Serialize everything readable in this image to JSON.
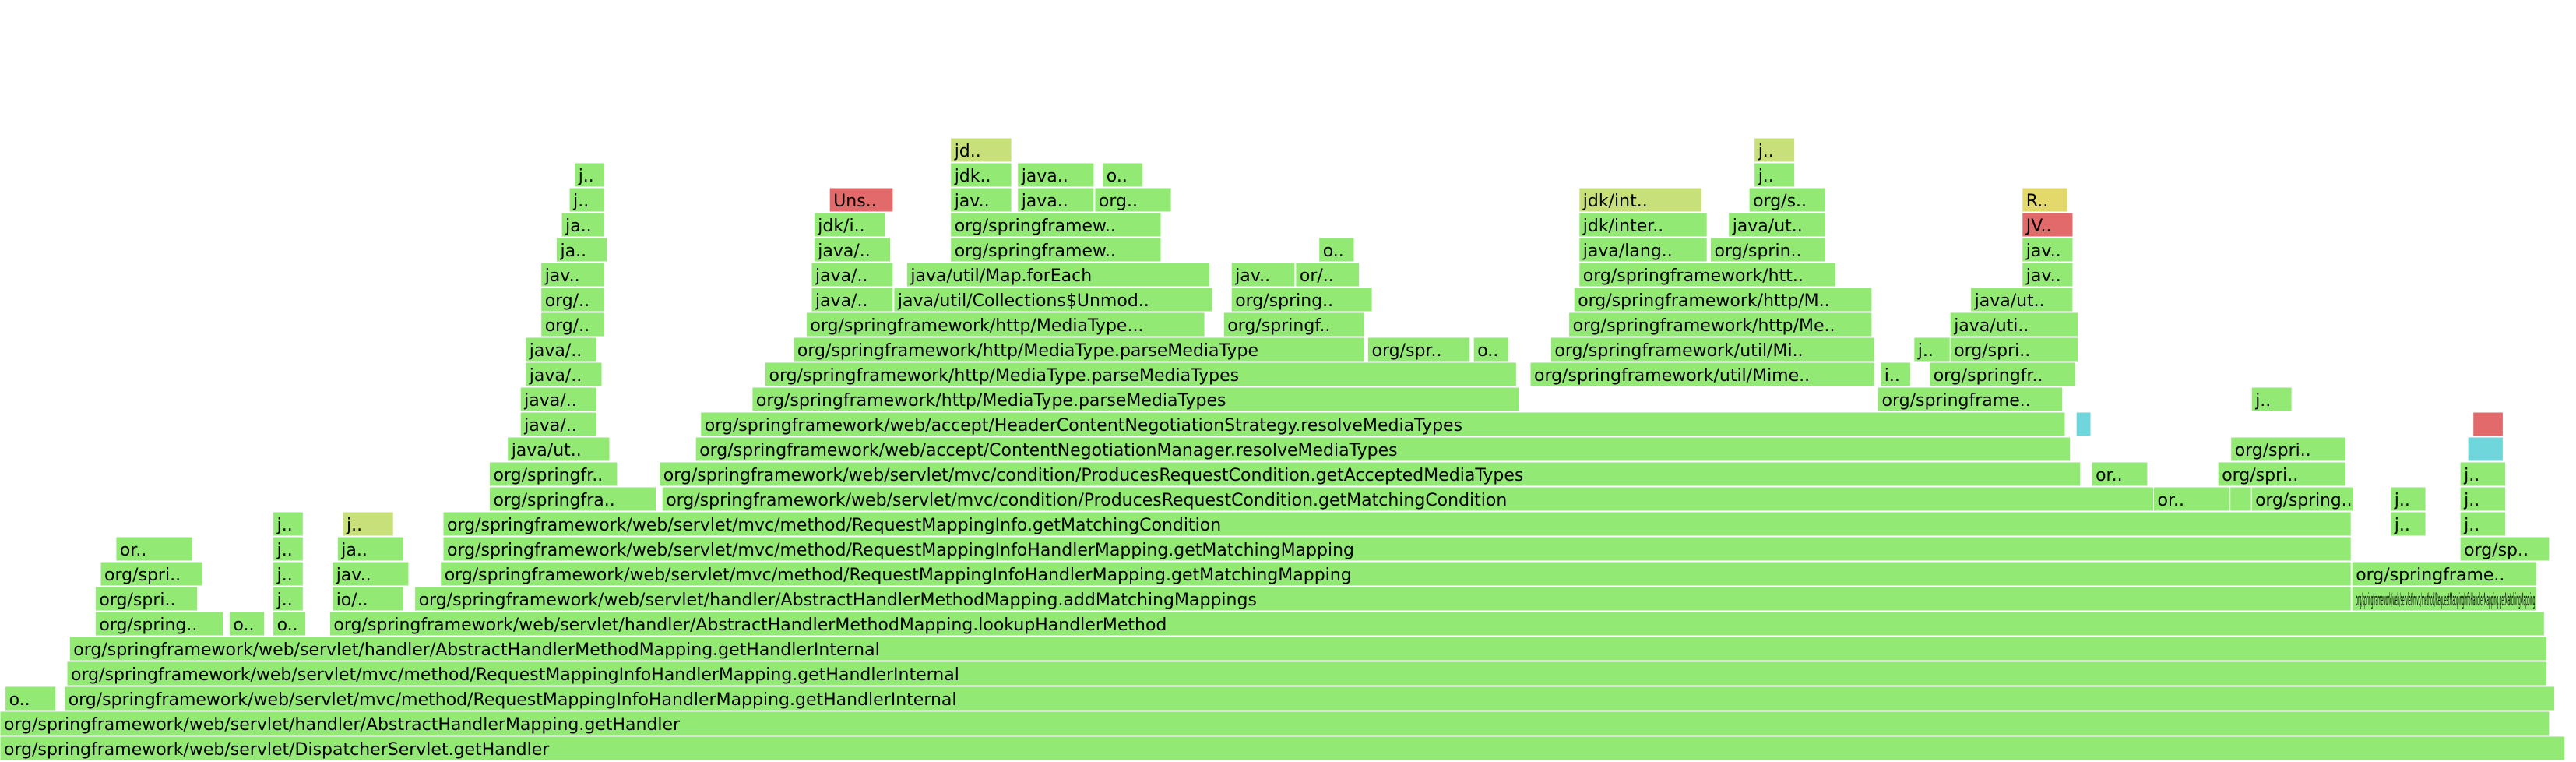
{
  "palette": {
    "green": "#92ea75",
    "green_dark": "#7fdf66",
    "yellow_green": "#c8e07a",
    "yellow": "#e3d96a",
    "cyan": "#6fd6dc",
    "red": "#e36a6a"
  },
  "chart_data": {
    "type": "flamegraph",
    "title": "",
    "xlabel": "",
    "ylabel": "",
    "x_units": "fraction of total samples",
    "frames": [
      {
        "label": "org/springframework/web/servlet/DispatcherServlet.getHandler",
        "level": 0,
        "start": 0.0,
        "width": 0.996,
        "color": "green"
      },
      {
        "label": "org/springframework/web/servlet/handler/AbstractHandlerMapping.getHandler",
        "level": 1,
        "start": 0.0,
        "width": 0.99,
        "color": "green"
      },
      {
        "label": "o..",
        "level": 2,
        "start": 0.002,
        "width": 0.02,
        "color": "green"
      },
      {
        "label": "org/springframework/web/servlet/mvc/method/RequestMappingInfoHandlerMapping.getHandlerInternal",
        "level": 2,
        "start": 0.025,
        "width": 0.967,
        "color": "green"
      },
      {
        "label": "org/springframework/web/servlet/mvc/method/RequestMappingInfoHandlerMapping.getHandlerInternal",
        "level": 3,
        "start": 0.026,
        "width": 0.963,
        "color": "green"
      },
      {
        "label": "org/springframework/web/servlet/handler/AbstractHandlerMethodMapping.getHandlerInternal",
        "level": 4,
        "start": 0.027,
        "width": 0.962,
        "color": "green"
      },
      {
        "label": "org/spring..",
        "level": 5,
        "start": 0.037,
        "width": 0.05,
        "color": "green"
      },
      {
        "label": "o..",
        "level": 5,
        "start": 0.089,
        "width": 0.014,
        "color": "green"
      },
      {
        "label": "o..",
        "level": 5,
        "start": 0.106,
        "width": 0.013,
        "color": "green"
      },
      {
        "label": "org/springframework/web/servlet/handler/AbstractHandlerMethodMapping.lookupHandlerMethod",
        "level": 5,
        "start": 0.128,
        "width": 0.86,
        "color": "green"
      },
      {
        "label": "org/spri..",
        "level": 6,
        "start": 0.037,
        "width": 0.04,
        "color": "green"
      },
      {
        "label": "j..",
        "level": 6,
        "start": 0.106,
        "width": 0.012,
        "color": "green"
      },
      {
        "label": "io/..",
        "level": 6,
        "start": 0.129,
        "width": 0.028,
        "color": "green"
      },
      {
        "label": "org/springframework/web/servlet/handler/AbstractHandlerMethodMapping.addMatchingMappings",
        "level": 6,
        "start": 0.161,
        "width": 0.752,
        "color": "green"
      },
      {
        "label": "org/springframework/web/servlet/mvc/method/RequestMappingInfoHandlerMapping.getMatchingMapping",
        "level": 6,
        "start": 0.913,
        "width": 0.072,
        "color": "green"
      },
      {
        "label": "org/spri..",
        "level": 7,
        "start": 0.039,
        "width": 0.04,
        "color": "green"
      },
      {
        "label": "j..",
        "level": 7,
        "start": 0.106,
        "width": 0.012,
        "color": "green"
      },
      {
        "label": "jav..",
        "level": 7,
        "start": 0.129,
        "width": 0.03,
        "color": "green"
      },
      {
        "label": "org/springframework/web/servlet/mvc/method/RequestMappingInfoHandlerMapping.getMatchingMapping",
        "level": 7,
        "start": 0.171,
        "width": 0.742,
        "color": "green"
      },
      {
        "label": "org/springframe..",
        "level": 7,
        "start": 0.913,
        "width": 0.072,
        "color": "green"
      },
      {
        "label": "or..",
        "level": 8,
        "start": 0.045,
        "width": 0.03,
        "color": "green"
      },
      {
        "label": "j..",
        "level": 8,
        "start": 0.106,
        "width": 0.012,
        "color": "green"
      },
      {
        "label": "ja..",
        "level": 8,
        "start": 0.131,
        "width": 0.026,
        "color": "green"
      },
      {
        "label": "org/springframework/web/servlet/mvc/method/RequestMappingInfoHandlerMapping.getMatchingMapping",
        "level": 8,
        "start": 0.172,
        "width": 0.741,
        "color": "green"
      },
      {
        "label": "org/sp..",
        "level": 8,
        "start": 0.955,
        "width": 0.035,
        "color": "green"
      },
      {
        "label": "j..",
        "level": 9,
        "start": 0.106,
        "width": 0.012,
        "color": "green"
      },
      {
        "label": "j..",
        "level": 9,
        "start": 0.133,
        "width": 0.02,
        "color": "yellow_green"
      },
      {
        "label": "org/springframework/web/servlet/mvc/method/RequestMappingInfo.getMatchingCondition",
        "level": 9,
        "start": 0.172,
        "width": 0.741,
        "color": "green"
      },
      {
        "label": "j..",
        "level": 9,
        "start": 0.928,
        "width": 0.014,
        "color": "green"
      },
      {
        "label": "j..",
        "level": 9,
        "start": 0.955,
        "width": 0.018,
        "color": "green"
      },
      {
        "label": "org/springfra..",
        "level": 10,
        "start": 0.19,
        "width": 0.065,
        "color": "green"
      },
      {
        "label": "org/springframework/web/servlet/mvc/condition/ProducesRequestCondition.getMatchingCondition",
        "level": 10,
        "start": 0.257,
        "width": 0.655,
        "color": "green"
      },
      {
        "label": "or..",
        "level": 10,
        "start": 0.836,
        "width": 0.03,
        "color": "green"
      },
      {
        "label": "org/spring..",
        "level": 10,
        "start": 0.874,
        "width": 0.04,
        "color": "green"
      },
      {
        "label": "j..",
        "level": 10,
        "start": 0.928,
        "width": 0.014,
        "color": "green"
      },
      {
        "label": "j..",
        "level": 10,
        "start": 0.955,
        "width": 0.018,
        "color": "green"
      },
      {
        "label": "org/springfr..",
        "level": 11,
        "start": 0.19,
        "width": 0.05,
        "color": "green"
      },
      {
        "label": "org/springframework/web/servlet/mvc/condition/ProducesRequestCondition.getAcceptedMediaTypes",
        "level": 11,
        "start": 0.256,
        "width": 0.552,
        "color": "green"
      },
      {
        "label": "or..",
        "level": 11,
        "start": 0.812,
        "width": 0.022,
        "color": "green"
      },
      {
        "label": "org/spri..",
        "level": 11,
        "start": 0.861,
        "width": 0.05,
        "color": "green"
      },
      {
        "label": "j..",
        "level": 11,
        "start": 0.955,
        "width": 0.018,
        "color": "green"
      },
      {
        "label": "java/ut..",
        "level": 12,
        "start": 0.197,
        "width": 0.04,
        "color": "green"
      },
      {
        "label": "org/springframework/web/accept/ContentNegotiationManager.resolveMediaTypes",
        "level": 12,
        "start": 0.27,
        "width": 0.534,
        "color": "green"
      },
      {
        "label": "org/spri..",
        "level": 12,
        "start": 0.866,
        "width": 0.045,
        "color": "green"
      },
      {
        "label": "",
        "level": 12,
        "start": 0.958,
        "width": 0.014,
        "color": "cyan"
      },
      {
        "label": "java/..",
        "level": 13,
        "start": 0.202,
        "width": 0.03,
        "color": "green"
      },
      {
        "label": "org/springframework/web/accept/HeaderContentNegotiationStrategy.resolveMediaTypes",
        "level": 13,
        "start": 0.272,
        "width": 0.53,
        "color": "green"
      },
      {
        "label": "",
        "level": 13,
        "start": 0.806,
        "width": 0.006,
        "color": "cyan"
      },
      {
        "label": "",
        "level": 13,
        "start": 0.96,
        "width": 0.012,
        "color": "red"
      },
      {
        "label": "java/..",
        "level": 14,
        "start": 0.202,
        "width": 0.03,
        "color": "green"
      },
      {
        "label": "org/springframework/http/MediaType.parseMediaTypes",
        "level": 14,
        "start": 0.292,
        "width": 0.298,
        "color": "green"
      },
      {
        "label": "org/springframe..",
        "level": 14,
        "start": 0.729,
        "width": 0.072,
        "color": "green"
      },
      {
        "label": "j..",
        "level": 14,
        "start": 0.874,
        "width": 0.016,
        "color": "green"
      },
      {
        "label": "java/..",
        "level": 15,
        "start": 0.204,
        "width": 0.03,
        "color": "green"
      },
      {
        "label": "org/springframework/http/MediaType.parseMediaTypes",
        "level": 15,
        "start": 0.297,
        "width": 0.292,
        "color": "green"
      },
      {
        "label": "org/springframework/util/Mime..",
        "level": 15,
        "start": 0.594,
        "width": 0.134,
        "color": "green"
      },
      {
        "label": "i..",
        "level": 15,
        "start": 0.73,
        "width": 0.012,
        "color": "green"
      },
      {
        "label": "org/springfr..",
        "level": 15,
        "start": 0.749,
        "width": 0.057,
        "color": "green"
      },
      {
        "label": "java/..",
        "level": 16,
        "start": 0.204,
        "width": 0.028,
        "color": "green"
      },
      {
        "label": "org/springframework/http/MediaType.parseMediaType",
        "level": 16,
        "start": 0.308,
        "width": 0.222,
        "color": "green"
      },
      {
        "label": "org/spr..",
        "level": 16,
        "start": 0.531,
        "width": 0.04,
        "color": "green"
      },
      {
        "label": "o..",
        "level": 16,
        "start": 0.572,
        "width": 0.014,
        "color": "green"
      },
      {
        "label": "org/springframework/util/Mi..",
        "level": 16,
        "start": 0.602,
        "width": 0.126,
        "color": "green"
      },
      {
        "label": "j..",
        "level": 16,
        "start": 0.743,
        "width": 0.016,
        "color": "green"
      },
      {
        "label": "org/spri..",
        "level": 16,
        "start": 0.757,
        "width": 0.05,
        "color": "green"
      },
      {
        "label": "org/..",
        "level": 17,
        "start": 0.21,
        "width": 0.025,
        "color": "green"
      },
      {
        "label": "org/springframework/http/MediaType...",
        "level": 17,
        "start": 0.313,
        "width": 0.155,
        "color": "green"
      },
      {
        "label": "org/springf..",
        "level": 17,
        "start": 0.475,
        "width": 0.055,
        "color": "green"
      },
      {
        "label": "org/springframework/http/Me..",
        "level": 17,
        "start": 0.609,
        "width": 0.118,
        "color": "green"
      },
      {
        "label": "java/uti..",
        "level": 17,
        "start": 0.757,
        "width": 0.05,
        "color": "green"
      },
      {
        "label": "org/..",
        "level": 18,
        "start": 0.21,
        "width": 0.025,
        "color": "green"
      },
      {
        "label": "java/..",
        "level": 18,
        "start": 0.315,
        "width": 0.032,
        "color": "green"
      },
      {
        "label": "java/util/Collections$Unmod..",
        "level": 18,
        "start": 0.347,
        "width": 0.124,
        "color": "green"
      },
      {
        "label": "org/spring..",
        "level": 18,
        "start": 0.478,
        "width": 0.055,
        "color": "green"
      },
      {
        "label": "org/springframework/http/M..",
        "level": 18,
        "start": 0.611,
        "width": 0.116,
        "color": "green"
      },
      {
        "label": "java/ut..",
        "level": 18,
        "start": 0.765,
        "width": 0.04,
        "color": "green"
      },
      {
        "label": "jav..",
        "level": 19,
        "start": 0.21,
        "width": 0.025,
        "color": "green"
      },
      {
        "label": "java/..",
        "level": 19,
        "start": 0.315,
        "width": 0.032,
        "color": "green"
      },
      {
        "label": "java/util/Map.forEach",
        "level": 19,
        "start": 0.352,
        "width": 0.118,
        "color": "green"
      },
      {
        "label": "jav..",
        "level": 19,
        "start": 0.478,
        "width": 0.025,
        "color": "green"
      },
      {
        "label": "or/..",
        "level": 19,
        "start": 0.503,
        "width": 0.025,
        "color": "green"
      },
      {
        "label": "org/springframework/htt..",
        "level": 19,
        "start": 0.613,
        "width": 0.1,
        "color": "green"
      },
      {
        "label": "jav..",
        "level": 19,
        "start": 0.785,
        "width": 0.02,
        "color": "green"
      },
      {
        "label": "ja..",
        "level": 20,
        "start": 0.216,
        "width": 0.02,
        "color": "green"
      },
      {
        "label": "java/..",
        "level": 20,
        "start": 0.316,
        "width": 0.03,
        "color": "green"
      },
      {
        "label": "org/springframew..",
        "level": 20,
        "start": 0.369,
        "width": 0.082,
        "color": "green"
      },
      {
        "label": "o..",
        "level": 20,
        "start": 0.512,
        "width": 0.014,
        "color": "green"
      },
      {
        "label": "java/lang..",
        "level": 20,
        "start": 0.613,
        "width": 0.05,
        "color": "green"
      },
      {
        "label": "org/sprin..",
        "level": 20,
        "start": 0.664,
        "width": 0.045,
        "color": "green"
      },
      {
        "label": "jav..",
        "level": 20,
        "start": 0.785,
        "width": 0.02,
        "color": "green"
      },
      {
        "label": "ja..",
        "level": 21,
        "start": 0.218,
        "width": 0.017,
        "color": "green"
      },
      {
        "label": "jdk/i..",
        "level": 21,
        "start": 0.316,
        "width": 0.028,
        "color": "green"
      },
      {
        "label": "org/springframew..",
        "level": 21,
        "start": 0.369,
        "width": 0.082,
        "color": "green"
      },
      {
        "label": "jdk/inter..",
        "level": 21,
        "start": 0.613,
        "width": 0.05,
        "color": "green"
      },
      {
        "label": "java/ut..",
        "level": 21,
        "start": 0.671,
        "width": 0.038,
        "color": "green"
      },
      {
        "label": "JV..",
        "level": 21,
        "start": 0.785,
        "width": 0.02,
        "color": "red"
      },
      {
        "label": "j..",
        "level": 22,
        "start": 0.221,
        "width": 0.014,
        "color": "green"
      },
      {
        "label": "Uns..",
        "level": 22,
        "start": 0.322,
        "width": 0.025,
        "color": "red"
      },
      {
        "label": "jav..",
        "level": 22,
        "start": 0.369,
        "width": 0.024,
        "color": "green"
      },
      {
        "label": "java..",
        "level": 22,
        "start": 0.395,
        "width": 0.03,
        "color": "green"
      },
      {
        "label": "org..",
        "level": 22,
        "start": 0.425,
        "width": 0.03,
        "color": "green"
      },
      {
        "label": "jdk/int..",
        "level": 22,
        "start": 0.613,
        "width": 0.048,
        "color": "yellow_green"
      },
      {
        "label": "org/s..",
        "level": 22,
        "start": 0.679,
        "width": 0.03,
        "color": "green"
      },
      {
        "label": "R..",
        "level": 22,
        "start": 0.785,
        "width": 0.018,
        "color": "yellow"
      },
      {
        "label": "j..",
        "level": 23,
        "start": 0.223,
        "width": 0.012,
        "color": "green"
      },
      {
        "label": "jdk..",
        "level": 23,
        "start": 0.369,
        "width": 0.024,
        "color": "green"
      },
      {
        "label": "java..",
        "level": 23,
        "start": 0.395,
        "width": 0.03,
        "color": "green"
      },
      {
        "label": "o..",
        "level": 23,
        "start": 0.428,
        "width": 0.016,
        "color": "green"
      },
      {
        "label": "j..",
        "level": 23,
        "start": 0.681,
        "width": 0.016,
        "color": "green"
      },
      {
        "label": "jd..",
        "level": 24,
        "start": 0.369,
        "width": 0.024,
        "color": "yellow_green"
      },
      {
        "label": "j..",
        "level": 24,
        "start": 0.681,
        "width": 0.016,
        "color": "yellow_green"
      }
    ]
  }
}
